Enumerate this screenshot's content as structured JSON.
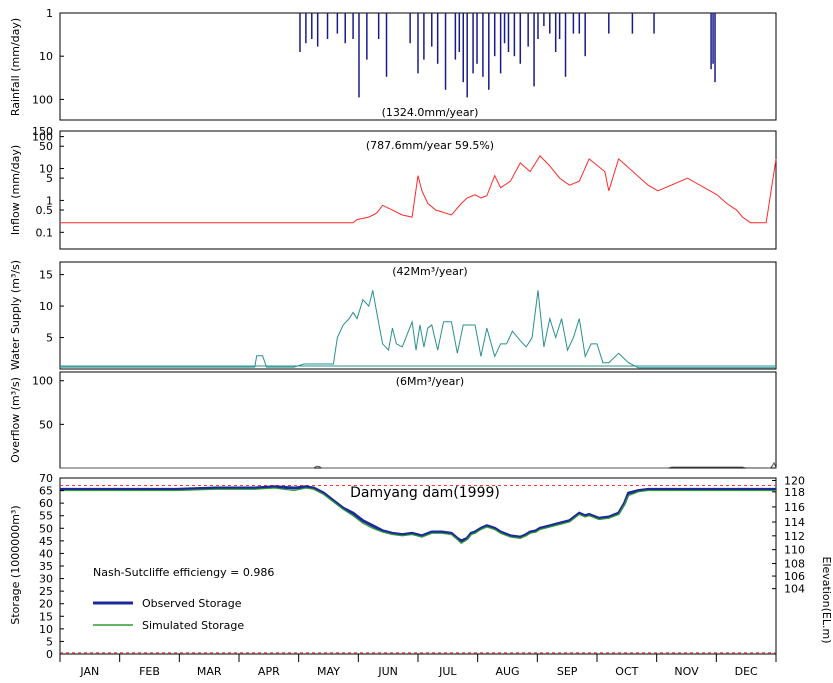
{
  "chart_data": [
    {
      "type": "bar",
      "panel": "rainfall",
      "ylabel": "Rainfall (mm/day)",
      "yscale": "log-inverted",
      "ylim": [
        1,
        300
      ],
      "yticks": [
        {
          "label": "1",
          "value": 1
        },
        {
          "label": "10",
          "value": 10
        },
        {
          "label": "100",
          "value": 100
        }
      ],
      "annotation": "(1324.0mm/year)",
      "color": "#1a1a8c",
      "series": [
        {
          "x": [
            123,
            126,
            129,
            132,
            137,
            142,
            146,
            150,
            153,
            157,
            163,
            167,
            179,
            183,
            186,
            190,
            193,
            197,
            202,
            204,
            206,
            208,
            211,
            213,
            216,
            219,
            222,
            225,
            227,
            229,
            232,
            235,
            239,
            242,
            244,
            247,
            250,
            253,
            255,
            258,
            262,
            265,
            268,
            280,
            292,
            303,
            332,
            333,
            334
          ],
          "values": [
            8,
            5,
            4,
            6,
            4,
            3,
            5,
            4,
            90,
            12,
            4,
            30,
            5,
            25,
            12,
            6,
            15,
            60,
            12,
            8,
            40,
            90,
            25,
            15,
            30,
            60,
            10,
            25,
            5,
            8,
            10,
            15,
            6,
            50,
            4,
            2,
            3,
            8,
            4,
            30,
            3,
            3,
            10,
            3,
            3,
            3,
            20,
            15,
            40
          ]
        }
      ]
    },
    {
      "type": "line",
      "panel": "inflow",
      "ylabel": "Inflow (mm/day)",
      "yscale": "log",
      "ylim": [
        0.03,
        150
      ],
      "yticks": [
        {
          "label": "150",
          "value": 150
        },
        {
          "label": "100",
          "value": 100
        },
        {
          "label": "50",
          "value": 50
        },
        {
          "label": "10",
          "value": 10
        },
        {
          "label": "5",
          "value": 5
        },
        {
          "label": "1",
          "value": 1
        },
        {
          "label": "0.5",
          "value": 0.5
        },
        {
          "label": "0.1",
          "value": 0.1
        }
      ],
      "annotation": "(787.6mm/year 59.5%)",
      "color": "#ff2a2a",
      "x": [
        1,
        50,
        60,
        68,
        72,
        75,
        80,
        90,
        100,
        120,
        130,
        140,
        150,
        152,
        158,
        162,
        165,
        170,
        175,
        180,
        183,
        185,
        188,
        192,
        200,
        205,
        208,
        212,
        215,
        218,
        222,
        225,
        230,
        235,
        240,
        245,
        250,
        255,
        260,
        265,
        270,
        278,
        280,
        285,
        300,
        305,
        320,
        335,
        340,
        345,
        348,
        352,
        360,
        365
      ],
      "y": [
        0.2,
        0.2,
        0.2,
        0.2,
        0.2,
        0.2,
        0.2,
        0.2,
        0.2,
        0.2,
        0.2,
        0.2,
        0.2,
        0.25,
        0.3,
        0.4,
        0.7,
        0.5,
        0.35,
        0.3,
        6,
        2,
        0.8,
        0.5,
        0.35,
        0.8,
        1.2,
        1.5,
        1.2,
        1.4,
        6,
        2.5,
        4,
        15,
        8,
        25,
        12,
        5,
        3,
        4,
        20,
        8,
        2,
        20,
        3,
        2,
        5,
        1.5,
        0.8,
        0.5,
        0.3,
        0.2,
        0.2,
        20
      ]
    },
    {
      "type": "area",
      "panel": "water_supply",
      "ylabel": "Water Supply (m³/s)",
      "ylim": [
        0,
        17
      ],
      "yticks": [
        {
          "label": "5",
          "value": 5
        },
        {
          "label": "10",
          "value": 10
        },
        {
          "label": "15",
          "value": 15
        }
      ],
      "annotation": "(42Mm³/year)",
      "color": "#2a9090",
      "x": [
        1,
        100,
        101,
        104,
        106,
        120,
        125,
        135,
        140,
        142,
        145,
        148,
        150,
        152,
        155,
        158,
        160,
        162,
        165,
        168,
        170,
        172,
        175,
        180,
        182,
        184,
        186,
        188,
        190,
        193,
        196,
        200,
        203,
        206,
        210,
        212,
        215,
        218,
        222,
        225,
        228,
        231,
        235,
        238,
        241,
        244,
        247,
        250,
        253,
        256,
        259,
        262,
        265,
        268,
        271,
        274,
        277,
        280,
        285,
        290,
        295,
        300,
        365
      ],
      "y": [
        0.3,
        0.3,
        2.1,
        2.1,
        0.3,
        0.3,
        0.8,
        0.8,
        0.8,
        5,
        7,
        8,
        9,
        8,
        11,
        10,
        12.5,
        9,
        4,
        3,
        6.5,
        4,
        3.5,
        7.5,
        3,
        7,
        3.5,
        6.5,
        7,
        3,
        7.5,
        7.5,
        2.5,
        7,
        7,
        7,
        2,
        6.5,
        2,
        4,
        4,
        6,
        4.5,
        3.5,
        5,
        12.5,
        3.5,
        8,
        5,
        8,
        3,
        5,
        8,
        2,
        4,
        4,
        1,
        1,
        2.5,
        1,
        0.2,
        0.2,
        0.2
      ]
    },
    {
      "type": "area",
      "panel": "overflow",
      "ylabel": "Overflow (m³/s)",
      "ylim": [
        0,
        110
      ],
      "yticks": [
        {
          "label": "50",
          "value": 50
        },
        {
          "label": "100",
          "value": 100
        }
      ],
      "annotation": "(6Mm³/year)",
      "color": "#555555",
      "x": [
        1,
        130,
        131,
        132,
        133,
        134,
        310,
        312,
        348,
        349,
        350,
        355,
        360,
        362,
        363,
        364,
        365
      ],
      "y": [
        0,
        0,
        1.5,
        2,
        1.5,
        0,
        0,
        1,
        1,
        0.5,
        0.2,
        0.2,
        0.2,
        0,
        2,
        6,
        0
      ]
    },
    {
      "type": "line",
      "panel": "storage",
      "ylabel": "Storage (1000000m³)",
      "ylabel_right": "Elevation(EL.m)",
      "ylim": [
        0,
        70
      ],
      "yticks": [
        {
          "label": "0",
          "value": 0
        },
        {
          "label": "5",
          "value": 5
        },
        {
          "label": "10",
          "value": 10
        },
        {
          "label": "15",
          "value": 15
        },
        {
          "label": "20",
          "value": 20
        },
        {
          "label": "25",
          "value": 25
        },
        {
          "label": "30",
          "value": 30
        },
        {
          "label": "35",
          "value": 35
        },
        {
          "label": "40",
          "value": 40
        },
        {
          "label": "45",
          "value": 45
        },
        {
          "label": "50",
          "value": 50
        },
        {
          "label": "55",
          "value": 55
        },
        {
          "label": "60",
          "value": 60
        },
        {
          "label": "65",
          "value": 65
        },
        {
          "label": "70",
          "value": 70
        }
      ],
      "yticks_right": [
        {
          "label": "120",
          "value": 69
        },
        {
          "label": "118",
          "value": 64.5
        },
        {
          "label": "116",
          "value": 58.5
        },
        {
          "label": "114",
          "value": 52.5
        },
        {
          "label": "112",
          "value": 47
        },
        {
          "label": "110",
          "value": 41.5
        },
        {
          "label": "108",
          "value": 36
        },
        {
          "label": "106",
          "value": 31
        },
        {
          "label": "104",
          "value": 26
        }
      ],
      "xticks": [
        "JAN",
        "FEB",
        "MAR",
        "APR",
        "MAY",
        "JUN",
        "JUL",
        "AUG",
        "SEP",
        "OCT",
        "NOV",
        "DEC"
      ],
      "title_annotation": "Damyang dam(1999)",
      "efficiency_text": "Nash-Sutcliffe efficiengy = 0.986",
      "reference_lines": [
        67,
        0.5
      ],
      "series": [
        {
          "name": "Observed Storage",
          "color": "#1c2a99",
          "x": [
            1,
            60,
            80,
            90,
            100,
            110,
            120,
            126,
            130,
            135,
            140,
            145,
            150,
            155,
            160,
            165,
            170,
            175,
            180,
            185,
            190,
            195,
            200,
            203,
            205,
            208,
            210,
            212,
            215,
            218,
            222,
            225,
            230,
            235,
            238,
            240,
            243,
            245,
            250,
            255,
            260,
            265,
            268,
            270,
            275,
            280,
            285,
            288,
            290,
            295,
            300,
            305,
            310,
            365
          ],
          "y": [
            65.5,
            65.5,
            66,
            66,
            66,
            66.5,
            66,
            66.5,
            66,
            64,
            61,
            58,
            56,
            53,
            51,
            49,
            48,
            47.5,
            48,
            47,
            48.5,
            48.5,
            48,
            46,
            45,
            46,
            48,
            48.5,
            50,
            51,
            50,
            48.5,
            47,
            46.5,
            47.5,
            48.5,
            49,
            50,
            51,
            52,
            53,
            56,
            55,
            55.5,
            54,
            54.5,
            56,
            60,
            64,
            65,
            65.5,
            65.5,
            65.5,
            65.5
          ]
        },
        {
          "name": "Simulated Storage",
          "color": "#2e9e2e",
          "x": [
            1,
            60,
            80,
            90,
            100,
            110,
            120,
            126,
            130,
            135,
            140,
            145,
            150,
            155,
            160,
            165,
            170,
            175,
            180,
            185,
            190,
            195,
            200,
            203,
            205,
            208,
            210,
            212,
            215,
            218,
            222,
            225,
            230,
            235,
            238,
            240,
            243,
            245,
            250,
            255,
            260,
            265,
            268,
            270,
            275,
            280,
            285,
            288,
            290,
            295,
            300,
            305,
            310,
            365
          ],
          "y": [
            65,
            65,
            65.5,
            65.5,
            65.5,
            66,
            65,
            66,
            65.5,
            63.5,
            60.5,
            57.5,
            55,
            52,
            50,
            48.5,
            47.5,
            47,
            47.5,
            46.5,
            48,
            48,
            47.5,
            45.5,
            44,
            45.5,
            47.5,
            48,
            49.5,
            50.5,
            49.5,
            48,
            46.5,
            46,
            47,
            48,
            48.5,
            49.5,
            50.5,
            51.5,
            52.5,
            55.5,
            54.5,
            55,
            53.5,
            54,
            55.5,
            59.5,
            63,
            64.5,
            65,
            65,
            65,
            65
          ]
        }
      ]
    }
  ],
  "panels": {
    "rainfall": {
      "ylabel": "Rainfall (mm/day)",
      "annotation": "(1324.0mm/year)"
    },
    "inflow": {
      "ylabel": "Inflow (mm/day)",
      "annotation": "(787.6mm/year 59.5%)"
    },
    "water_supply": {
      "ylabel": "Water Supply (m³/s)",
      "annotation": "(42Mm³/year)"
    },
    "overflow": {
      "ylabel": "Overflow (m³/s)",
      "annotation": "(6Mm³/year)"
    },
    "storage": {
      "ylabel": "Storage (1000000m³)",
      "ylabel_right": "Elevation(EL.m)",
      "title": "Damyang dam(1999)",
      "efficiency": "Nash-Sutcliffe efficiengy = 0.986",
      "legend_observed": "Observed Storage",
      "legend_simulated": "Simulated Storage"
    }
  }
}
